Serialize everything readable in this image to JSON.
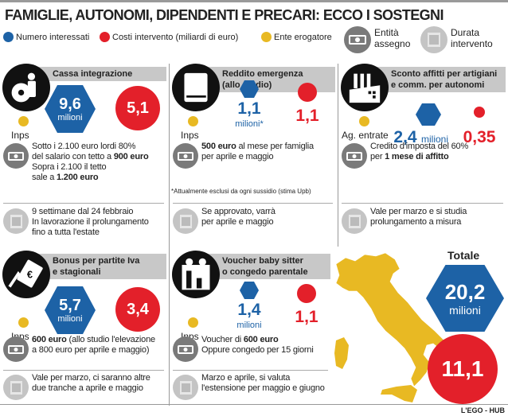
{
  "title": "FAMIGLIE, AUTONOMI, DIPENDENTI E PRECARI: ECCO I SOSTEGNI",
  "legend": {
    "interessati": "Numero interessati",
    "costi": "Costi intervento (miliardi di euro)",
    "ente": "Ente erogatore",
    "entita": [
      "Entità",
      "assegno"
    ],
    "durata": [
      "Durata",
      "intervento"
    ]
  },
  "colors": {
    "blue": "#1d62a6",
    "red": "#e3202a",
    "yellow": "#e8b923",
    "header_gray": "#c8c8c8"
  },
  "cards": [
    {
      "id": "cassa-integrazione",
      "icon": "worker-gear-icon",
      "title": [
        "Cassa integrazione"
      ],
      "ente": "Inps",
      "count": "9,6",
      "unit": "milioni",
      "cost": "5,1",
      "style": "inside",
      "cheque": [
        [
          {
            "t": "Sotto i 2.100 euro lordi 80%"
          }
        ],
        [
          {
            "t": "del salario con tetto a "
          },
          {
            "t": "900 euro",
            "b": true
          }
        ],
        [
          {
            "t": "Sopra i 2.100 il tetto"
          }
        ],
        [
          {
            "t": "sale a "
          },
          {
            "t": "1.200 euro",
            "b": true
          }
        ]
      ],
      "duration": [
        "9 settimane dal 24 febbraio",
        "In lavorazione il prolungamento",
        "fino a tutta l'estate"
      ]
    },
    {
      "id": "reddito-emergenza",
      "icon": "book-icon",
      "title": [
        "Reddito emergenza",
        "(allo studio)"
      ],
      "ente": "Inps",
      "count": "1,1",
      "unit": "milioni*",
      "cost": "1,1",
      "style": "below",
      "cheque": [
        [
          {
            "t": "500 euro",
            "b": true
          },
          {
            "t": " al mese per famiglia"
          }
        ],
        [
          {
            "t": "per aprile e maggio"
          }
        ]
      ],
      "note": "*Attualmente esclusi da ogni sussidio (stima Upb)",
      "duration": [
        "Se approvato, varrà",
        "per aprile e maggio"
      ]
    },
    {
      "id": "sconto-affitti",
      "icon": "factory-icon",
      "title": [
        "Sconto affitti per artigiani",
        "e comm. per autonomi"
      ],
      "ente": "Ag. entrate",
      "count": "2,4",
      "unit": "milioni",
      "cost": "0,35",
      "style": "inline",
      "cheque": [
        [
          {
            "t": "Credito d'imposta del 60%"
          }
        ],
        [
          {
            "t": "per "
          },
          {
            "t": "1 mese di affitto",
            "b": true
          }
        ]
      ],
      "duration": [
        "Vale per marzo e si studia",
        "prolungamento a misura"
      ]
    },
    {
      "id": "bonus-partite-iva",
      "icon": "hand-euro-icon",
      "title": [
        "Bonus per partite Iva",
        "e stagionali"
      ],
      "ente": "Inps",
      "count": "5,7",
      "unit": "milioni",
      "cost": "3,4",
      "style": "inside",
      "cheque": [
        [
          {
            "t": "600 euro",
            "b": true
          },
          {
            "t": " (allo studio l'elevazione"
          }
        ],
        [
          {
            "t": "a 800 euro per aprile e maggio)"
          }
        ]
      ],
      "duration": [
        "Vale per marzo, ci saranno altre",
        "due tranche a aprile e maggio"
      ]
    },
    {
      "id": "voucher-baby-sitter",
      "icon": "family-icon",
      "title": [
        "Voucher baby sitter",
        "o congedo parentale"
      ],
      "ente": "Inps",
      "count": "1,4",
      "unit": "milioni",
      "cost": "1,1",
      "style": "below",
      "cheque": [
        [
          {
            "t": "Voucher di "
          },
          {
            "t": "600 euro",
            "b": true
          }
        ],
        [
          {
            "t": "Oppure congedo per 15 giorni"
          }
        ]
      ],
      "duration": [
        "Marzo e aprile, si valuta",
        "l'estensione per maggio e giugno"
      ]
    }
  ],
  "totale": {
    "label": "Totale",
    "count": "20,2",
    "unit": "milioni",
    "cost": "11,1"
  },
  "credit": "L'EGO - HUB"
}
